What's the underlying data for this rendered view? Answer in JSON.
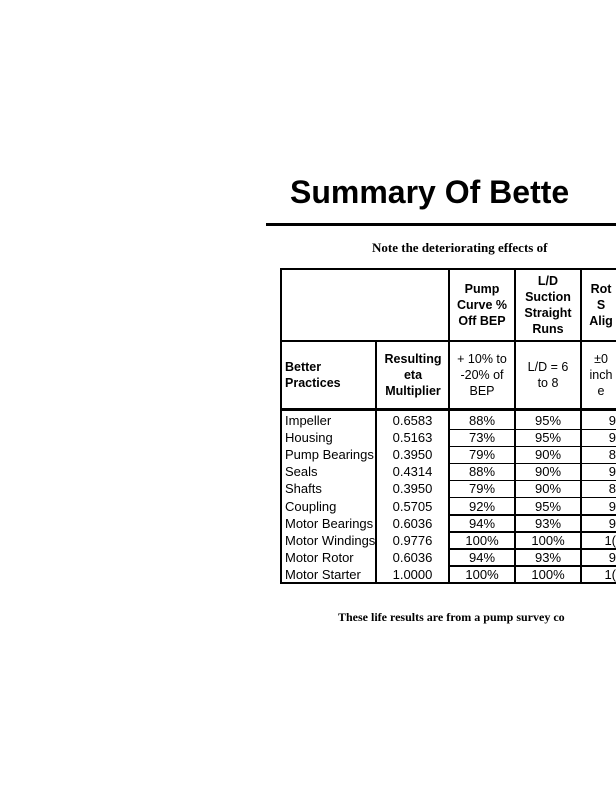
{
  "title": "Summary Of Bette",
  "note": "Note the deteriorating effects of",
  "footer": "These life results are from a pump survey co",
  "table": {
    "header_top": [
      "Pump Curve % Off BEP",
      "L/D Suction Straight Runs",
      "Rot S Alig"
    ],
    "header_second": {
      "col1": "Better Practices",
      "col2": "Resulting eta Multiplier",
      "col3": "+ 10% to -20% of BEP",
      "col4": "L/D = 6 to 8",
      "col5": "±0 inch e"
    },
    "rows": [
      {
        "name": "Impeller",
        "eta": "0.6583",
        "pump_curve": "88%",
        "ld": "95%",
        "rot": "9"
      },
      {
        "name": "Housing",
        "eta": "0.5163",
        "pump_curve": "73%",
        "ld": "95%",
        "rot": "9"
      },
      {
        "name": "Pump Bearings",
        "eta": "0.3950",
        "pump_curve": "79%",
        "ld": "90%",
        "rot": "8"
      },
      {
        "name": "Seals",
        "eta": "0.4314",
        "pump_curve": "88%",
        "ld": "90%",
        "rot": "9"
      },
      {
        "name": "Shafts",
        "eta": "0.3950",
        "pump_curve": "79%",
        "ld": "90%",
        "rot": "8"
      },
      {
        "name": "Coupling",
        "eta": "0.5705",
        "pump_curve": "92%",
        "ld": "95%",
        "rot": "9"
      },
      {
        "name": "Motor Bearings",
        "eta": "0.6036",
        "pump_curve": "94%",
        "ld": "93%",
        "rot": "9"
      },
      {
        "name": "Motor Windings",
        "eta": "0.9776",
        "pump_curve": "100%",
        "ld": "100%",
        "rot": "1("
      },
      {
        "name": "Motor Rotor",
        "eta": "0.6036",
        "pump_curve": "94%",
        "ld": "93%",
        "rot": "9"
      },
      {
        "name": "Motor Starter",
        "eta": "1.0000",
        "pump_curve": "100%",
        "ld": "100%",
        "rot": "1("
      }
    ]
  }
}
